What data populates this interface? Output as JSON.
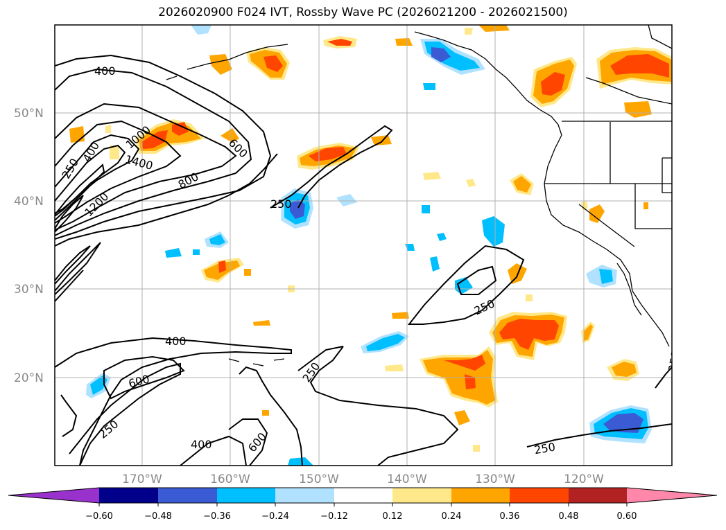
{
  "title": "2026020900 F024 IVT, Rossby Wave PC (2026021200 - 2026021500)",
  "map": {
    "lat_labels": [
      "50°N",
      "40°N",
      "30°N",
      "20°N"
    ],
    "lon_labels": [
      "170°W",
      "160°W",
      "150°W",
      "140°W",
      "130°W",
      "120°W"
    ],
    "contour_labels": [
      "400",
      "1000",
      "400",
      "250",
      "600",
      "1400",
      "800",
      "1200",
      "250",
      "250",
      "250",
      "400",
      "600",
      "250",
      "250",
      "400",
      "600",
      "250",
      "250"
    ]
  },
  "colorbar": {
    "ticks": [
      "−0.60",
      "−0.48",
      "−0.36",
      "−0.24",
      "−0.12",
      "0.12",
      "0.24",
      "0.36",
      "0.48",
      "0.60"
    ],
    "colors": [
      "#9932cc",
      "#00008b",
      "#3a5bd4",
      "#00bfff",
      "#b0e2ff",
      "#ffffff",
      "#ffe88a",
      "#ffa500",
      "#ff4500",
      "#b22222",
      "#ff88aa"
    ]
  }
}
